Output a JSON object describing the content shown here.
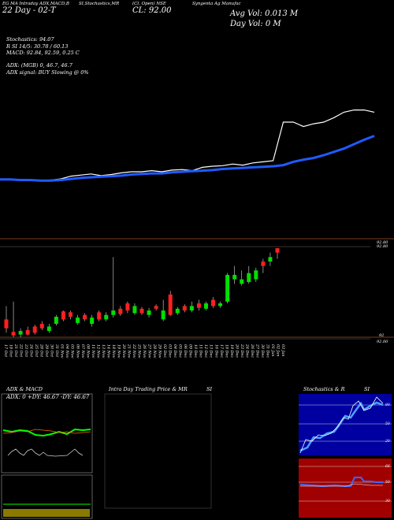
{
  "header": {
    "line1": "EG MA Intraday ADX,MACD,B",
    "line2": "SI,Stochastics,MR",
    "line3": "(Cl. Open) NSE",
    "line4": "Syngenta Ag Manufac",
    "date_label": "22 Day - 02-T",
    "close_label": "CL: 92.00",
    "avg_vol": "Avg Vol: 0.013 M",
    "day_vol": "Day Vol: 0  M"
  },
  "indicators": {
    "stochastics": "Stochastics: 94.07",
    "rsi": "R                SI 14/5: 30.78 / 60.13",
    "macd": "MACD: 92.84,  92.59,  0.25 C",
    "adx": "ADX:                         (MGB) 0,  46.7,  46.7",
    "adx_signal": "ADX  signal:                              BUY Slowing @ 0%"
  },
  "price_axis": {
    "top_label1": "92.80",
    "top_label2": "92.80",
    "bottom_label1": "92",
    "bottom_label2": "92.00"
  },
  "dates": [
    "17 Oct",
    "18 Oct",
    "21 Oct",
    "22 Oct",
    "23 Oct",
    "24 Oct",
    "25 Oct",
    "28 Oct",
    "29 Oct",
    "30 Oct",
    "31 Oct",
    "01 Nov",
    "04 Nov",
    "05 Nov",
    "06 Nov",
    "07 Nov",
    "08 Nov",
    "11 Nov",
    "12 Nov",
    "13 Nov",
    "14 Nov",
    "18 Nov",
    "19 Nov",
    "20 Nov",
    "21 Nov",
    "22 Nov",
    "25 Nov",
    "26 Nov",
    "27 Nov",
    "28 Nov",
    "29 Nov",
    "02 Dec",
    "03 Dec",
    "04 Dec",
    "05 Dec",
    "06 Dec",
    "09 Dec",
    "10 Dec",
    "11 Dec",
    "12 Dec",
    "13 Dec",
    "16 Dec",
    "17 Dec",
    "18 Dec",
    "19 Dec",
    "20 Dec",
    "23 Dec",
    "24 Dec",
    "26 Dec",
    "27 Dec",
    "30 Dec",
    "31 Dec",
    "01 Jan",
    "02 Jan",
    "03 Jan"
  ],
  "panels": {
    "adx_title": "ADX  & MACD",
    "adx_values": "ADX: 0   +DY: 46.67  -DY: 46.67",
    "intraday_title": "Intra  Day Trading Price  & MR",
    "intraday_si": "SI",
    "stoch_title": "Stochastics & R",
    "stoch_si": "SI",
    "stoch_levels": [
      "80",
      "50",
      "20"
    ],
    "rsi_levels": [
      "66",
      "50",
      "30"
    ]
  },
  "chart_data": {
    "type": "line",
    "title": "",
    "xlabel": "",
    "ylabel": "",
    "series": [
      {
        "values": [
          0.46,
          0.46,
          0.44,
          0.45,
          0.43,
          0.45,
          0.47,
          0.52,
          0.54,
          0.56,
          0.53,
          0.55,
          0.58,
          0.6,
          0.6,
          0.62,
          0.6,
          0.63,
          0.64,
          0.62,
          0.68,
          0.7,
          0.71,
          0.74,
          0.72,
          0.76,
          0.78,
          0.8,
          1.5,
          1.5,
          1.42,
          1.47,
          1.5,
          1.58,
          1.68,
          1.72,
          1.72,
          1.68
        ]
      },
      {
        "values": [
          0.46,
          0.46,
          0.45,
          0.45,
          0.44,
          0.44,
          0.45,
          0.47,
          0.49,
          0.5,
          0.51,
          0.52,
          0.53,
          0.55,
          0.56,
          0.57,
          0.57,
          0.59,
          0.6,
          0.61,
          0.62,
          0.63,
          0.65,
          0.66,
          0.67,
          0.68,
          0.69,
          0.7,
          0.72,
          0.78,
          0.82,
          0.85,
          0.9,
          0.96,
          1.02,
          1.1,
          1.18,
          1.25
        ]
      }
    ],
    "candles": [
      {
        "o": 0.1,
        "c": 0.2,
        "h": 0.35,
        "l": 0.05,
        "color": "red"
      },
      {
        "o": 0.06,
        "c": 0.02,
        "h": 0.4,
        "l": 0.0,
        "color": "red"
      },
      {
        "o": 0.03,
        "c": 0.07,
        "h": 0.1,
        "l": 0.0,
        "color": "green"
      },
      {
        "o": 0.08,
        "c": 0.03,
        "h": 0.12,
        "l": 0.02,
        "color": "red"
      },
      {
        "o": 0.05,
        "c": 0.12,
        "h": 0.14,
        "l": 0.03,
        "color": "red"
      },
      {
        "o": 0.1,
        "c": 0.15,
        "h": 0.18,
        "l": 0.08,
        "color": "red"
      },
      {
        "o": 0.12,
        "c": 0.07,
        "h": 0.15,
        "l": 0.05,
        "color": "green"
      },
      {
        "o": 0.15,
        "c": 0.23,
        "h": 0.25,
        "l": 0.13,
        "color": "green"
      },
      {
        "o": 0.2,
        "c": 0.29,
        "h": 0.3,
        "l": 0.18,
        "color": "red"
      },
      {
        "o": 0.28,
        "c": 0.23,
        "h": 0.3,
        "l": 0.2,
        "color": "red"
      },
      {
        "o": 0.22,
        "c": 0.16,
        "h": 0.25,
        "l": 0.14,
        "color": "green"
      },
      {
        "o": 0.2,
        "c": 0.25,
        "h": 0.27,
        "l": 0.18,
        "color": "red"
      },
      {
        "o": 0.22,
        "c": 0.15,
        "h": 0.25,
        "l": 0.12,
        "color": "green"
      },
      {
        "o": 0.2,
        "c": 0.28,
        "h": 0.3,
        "l": 0.18,
        "color": "red"
      },
      {
        "o": 0.25,
        "c": 0.2,
        "h": 0.28,
        "l": 0.18,
        "color": "green"
      },
      {
        "o": 0.3,
        "c": 0.25,
        "h": 0.9,
        "l": 0.22,
        "color": "green"
      },
      {
        "o": 0.26,
        "c": 0.32,
        "h": 0.35,
        "l": 0.24,
        "color": "red"
      },
      {
        "o": 0.3,
        "c": 0.38,
        "h": 0.4,
        "l": 0.27,
        "color": "red"
      },
      {
        "o": 0.35,
        "c": 0.27,
        "h": 0.38,
        "l": 0.25,
        "color": "green"
      },
      {
        "o": 0.27,
        "c": 0.32,
        "h": 0.34,
        "l": 0.25,
        "color": "red"
      },
      {
        "o": 0.3,
        "c": 0.25,
        "h": 0.33,
        "l": 0.22,
        "color": "green"
      },
      {
        "o": 0.35,
        "c": 0.32,
        "h": 0.37,
        "l": 0.3,
        "color": "red"
      },
      {
        "o": 0.3,
        "c": 0.2,
        "h": 0.42,
        "l": 0.18,
        "color": "green"
      },
      {
        "o": 0.25,
        "c": 0.48,
        "h": 0.52,
        "l": 0.24,
        "color": "red"
      },
      {
        "o": 0.32,
        "c": 0.27,
        "h": 0.34,
        "l": 0.25,
        "color": "green"
      },
      {
        "o": 0.3,
        "c": 0.35,
        "h": 0.37,
        "l": 0.28,
        "color": "red"
      },
      {
        "o": 0.35,
        "c": 0.3,
        "h": 0.4,
        "l": 0.28,
        "color": "green"
      },
      {
        "o": 0.33,
        "c": 0.38,
        "h": 0.42,
        "l": 0.3,
        "color": "red"
      },
      {
        "o": 0.38,
        "c": 0.32,
        "h": 0.4,
        "l": 0.3,
        "color": "green"
      },
      {
        "o": 0.35,
        "c": 0.42,
        "h": 0.45,
        "l": 0.33,
        "color": "red"
      },
      {
        "o": 0.38,
        "c": 0.35,
        "h": 0.4,
        "l": 0.33,
        "color": "green"
      },
      {
        "o": 0.4,
        "c": 0.7,
        "h": 0.72,
        "l": 0.38,
        "color": "green"
      },
      {
        "o": 0.7,
        "c": 0.65,
        "h": 0.8,
        "l": 0.6,
        "color": "green"
      },
      {
        "o": 0.65,
        "c": 0.6,
        "h": 0.75,
        "l": 0.58,
        "color": "green"
      },
      {
        "o": 0.62,
        "c": 0.72,
        "h": 0.8,
        "l": 0.6,
        "color": "green"
      },
      {
        "o": 0.75,
        "c": 0.65,
        "h": 0.78,
        "l": 0.62,
        "color": "green"
      },
      {
        "o": 0.8,
        "c": 0.85,
        "h": 0.88,
        "l": 0.72,
        "color": "red"
      },
      {
        "o": 0.9,
        "c": 0.85,
        "h": 0.95,
        "l": 0.8,
        "color": "green"
      },
      {
        "o": 0.95,
        "c": 1.0,
        "h": 1.0,
        "l": 0.88,
        "color": "red"
      }
    ]
  }
}
